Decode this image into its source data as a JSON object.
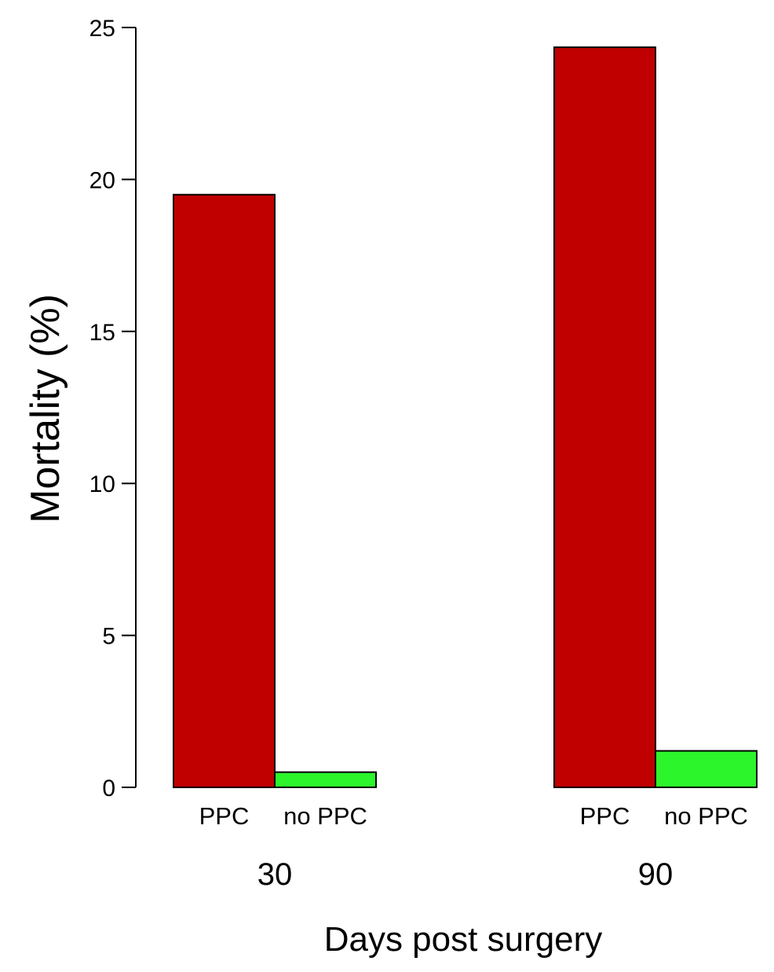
{
  "chart_data": {
    "type": "bar",
    "xlabel": "Days post surgery",
    "ylabel": "Mortality (%)",
    "ylim": [
      0,
      25
    ],
    "yticks": [
      0,
      5,
      10,
      15,
      20,
      25
    ],
    "grid": false,
    "groups": [
      {
        "label": "30",
        "bars": [
          {
            "label": "PPC",
            "value": 19.5,
            "color": "#c00000"
          },
          {
            "label": "no PPC",
            "value": 0.5,
            "color": "#2cf52c"
          }
        ]
      },
      {
        "label": "90",
        "bars": [
          {
            "label": "PPC",
            "value": 24.35,
            "color": "#c00000"
          },
          {
            "label": "no PPC",
            "value": 1.2,
            "color": "#2cf52c"
          }
        ]
      }
    ]
  }
}
